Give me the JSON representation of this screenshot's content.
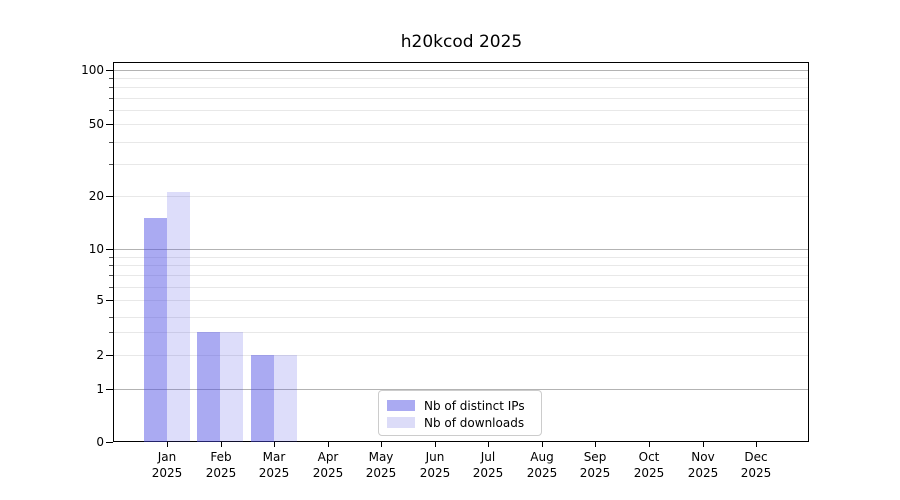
{
  "figure": {
    "title": "h20kcod 2025",
    "colors": {
      "axis": "#000000",
      "grid_major": "#b3b3b3",
      "grid_minor": "#e8e8e8",
      "legend_border": "#cccccc",
      "background": "#ffffff"
    }
  },
  "chart_data": {
    "type": "bar",
    "title": "h20kcod 2025",
    "x_categories": [
      "Jan",
      "Feb",
      "Mar",
      "Apr",
      "May",
      "Jun",
      "Jul",
      "Aug",
      "Sep",
      "Oct",
      "Nov",
      "Dec"
    ],
    "x_year": "2025",
    "series": [
      {
        "name": "Nb of distinct IPs",
        "base_color": "#4a4ae3",
        "alpha": 0.47,
        "swatch_color": "#aaaaf2",
        "values": [
          15,
          3,
          2,
          0,
          0,
          0,
          0,
          0,
          0,
          0,
          0,
          0
        ]
      },
      {
        "name": "Nb of downloads",
        "base_color": "#4a4ae3",
        "alpha": 0.19,
        "swatch_color": "#dcdcf8",
        "values": [
          21,
          3,
          2,
          0,
          0,
          0,
          0,
          0,
          0,
          0,
          0,
          0
        ]
      }
    ],
    "y_axis": {
      "scale": "symlog",
      "lim": [
        0,
        100
      ],
      "labeled_ticks": [
        0,
        1,
        2,
        5,
        10,
        20,
        50,
        100
      ],
      "major_grid_values": [
        1,
        10,
        100
      ],
      "labeled_minor_grid_values": [
        2,
        5,
        20,
        50
      ],
      "minor_grid_values": [
        3,
        4,
        6,
        7,
        8,
        9,
        30,
        40,
        60,
        70,
        80,
        90
      ]
    },
    "grid": true,
    "legend": {
      "position": "lower-center-inside",
      "items": [
        "Nb of distinct IPs",
        "Nb of downloads"
      ]
    }
  }
}
